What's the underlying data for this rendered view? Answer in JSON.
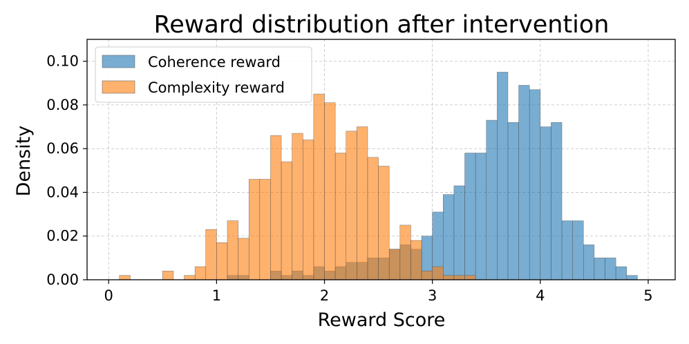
{
  "chart_data": {
    "type": "histogram",
    "title": "Reward distribution after intervention",
    "xlabel": "Reward Score",
    "ylabel": "Density",
    "xlim": [
      -0.2,
      5.25
    ],
    "ylim": [
      0,
      0.11
    ],
    "xticks": [
      0,
      1,
      2,
      3,
      4,
      5
    ],
    "xtick_labels": [
      "0",
      "1",
      "2",
      "3",
      "4",
      "5"
    ],
    "yticks": [
      0,
      0.02,
      0.04,
      0.06,
      0.08,
      0.1
    ],
    "ytick_labels": [
      "0.00",
      "0.02",
      "0.04",
      "0.06",
      "0.08",
      "0.10"
    ],
    "grid": true,
    "legend_position": "top-left",
    "bin_width": 0.1,
    "colors": {
      "coherence": "#1f77b4",
      "complexity": "#ff7f0e"
    },
    "series": [
      {
        "name": "Coherence reward",
        "color": "#1f77b4",
        "bins": [
          {
            "x": 1.1,
            "y": 0.002
          },
          {
            "x": 1.2,
            "y": 0.002
          },
          {
            "x": 1.5,
            "y": 0.004
          },
          {
            "x": 1.6,
            "y": 0.002
          },
          {
            "x": 1.7,
            "y": 0.004
          },
          {
            "x": 1.8,
            "y": 0.002
          },
          {
            "x": 1.9,
            "y": 0.006
          },
          {
            "x": 2.0,
            "y": 0.004
          },
          {
            "x": 2.1,
            "y": 0.006
          },
          {
            "x": 2.2,
            "y": 0.008
          },
          {
            "x": 2.3,
            "y": 0.008
          },
          {
            "x": 2.4,
            "y": 0.01
          },
          {
            "x": 2.5,
            "y": 0.01
          },
          {
            "x": 2.6,
            "y": 0.014
          },
          {
            "x": 2.7,
            "y": 0.016
          },
          {
            "x": 2.8,
            "y": 0.014
          },
          {
            "x": 2.9,
            "y": 0.02
          },
          {
            "x": 3.0,
            "y": 0.031
          },
          {
            "x": 3.1,
            "y": 0.039
          },
          {
            "x": 3.2,
            "y": 0.043
          },
          {
            "x": 3.3,
            "y": 0.058
          },
          {
            "x": 3.4,
            "y": 0.058
          },
          {
            "x": 3.5,
            "y": 0.073
          },
          {
            "x": 3.6,
            "y": 0.095
          },
          {
            "x": 3.7,
            "y": 0.072
          },
          {
            "x": 3.8,
            "y": 0.089
          },
          {
            "x": 3.9,
            "y": 0.087
          },
          {
            "x": 4.0,
            "y": 0.07
          },
          {
            "x": 4.1,
            "y": 0.072
          },
          {
            "x": 4.2,
            "y": 0.027
          },
          {
            "x": 4.3,
            "y": 0.027
          },
          {
            "x": 4.4,
            "y": 0.016
          },
          {
            "x": 4.5,
            "y": 0.01
          },
          {
            "x": 4.6,
            "y": 0.01
          },
          {
            "x": 4.7,
            "y": 0.006
          },
          {
            "x": 4.8,
            "y": 0.002
          }
        ]
      },
      {
        "name": "Complexity reward",
        "color": "#ff7f0e",
        "bins": [
          {
            "x": 0.1,
            "y": 0.002
          },
          {
            "x": 0.5,
            "y": 0.004
          },
          {
            "x": 0.7,
            "y": 0.002
          },
          {
            "x": 0.8,
            "y": 0.006
          },
          {
            "x": 0.9,
            "y": 0.023
          },
          {
            "x": 1.0,
            "y": 0.017
          },
          {
            "x": 1.1,
            "y": 0.027
          },
          {
            "x": 1.2,
            "y": 0.019
          },
          {
            "x": 1.3,
            "y": 0.046
          },
          {
            "x": 1.4,
            "y": 0.046
          },
          {
            "x": 1.5,
            "y": 0.066
          },
          {
            "x": 1.6,
            "y": 0.054
          },
          {
            "x": 1.7,
            "y": 0.067
          },
          {
            "x": 1.8,
            "y": 0.064
          },
          {
            "x": 1.9,
            "y": 0.085
          },
          {
            "x": 2.0,
            "y": 0.081
          },
          {
            "x": 2.1,
            "y": 0.058
          },
          {
            "x": 2.2,
            "y": 0.068
          },
          {
            "x": 2.3,
            "y": 0.07
          },
          {
            "x": 2.4,
            "y": 0.056
          },
          {
            "x": 2.5,
            "y": 0.052
          },
          {
            "x": 2.6,
            "y": 0.014
          },
          {
            "x": 2.7,
            "y": 0.025
          },
          {
            "x": 2.8,
            "y": 0.018
          },
          {
            "x": 2.9,
            "y": 0.004
          },
          {
            "x": 3.0,
            "y": 0.006
          },
          {
            "x": 3.1,
            "y": 0.002
          },
          {
            "x": 3.2,
            "y": 0.002
          },
          {
            "x": 3.3,
            "y": 0.002
          }
        ]
      }
    ]
  }
}
